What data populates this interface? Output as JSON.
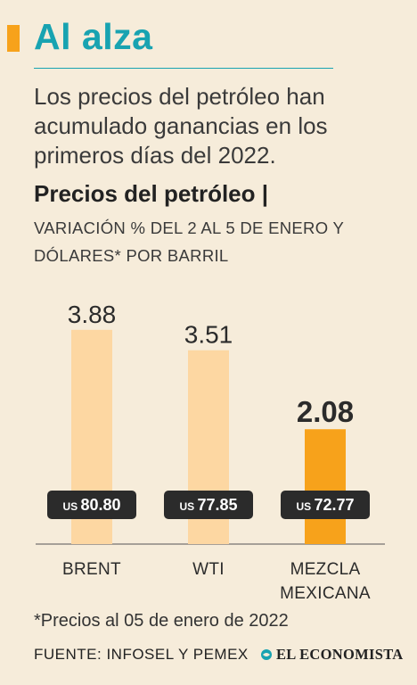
{
  "header": {
    "title": "Al alza",
    "subtitle": "Los precios del petróleo han acumulado ganancias en los primeros días del 2022."
  },
  "chart_data": {
    "type": "bar",
    "title": "Precios del petróleo |",
    "subtitle": "VARIACIÓN % DEL 2 AL 5 DE ENERO Y DÓLARES* POR BARRIL",
    "categories": [
      "BRENT",
      "WTI",
      "MEZCLA MEXICANA"
    ],
    "values": [
      3.88,
      3.51,
      2.08
    ],
    "value_labels": [
      "3.88",
      "3.51",
      "2.08"
    ],
    "price_currency": "US",
    "prices": [
      "80.80",
      "77.85",
      "72.77"
    ],
    "ylim": [
      0,
      4.2
    ],
    "grid": false,
    "colors": {
      "default_bar": "#fdd7a2",
      "highlight_bar": "#f7a21b",
      "price_badge": "#2b2b2b",
      "baseline": "#555555"
    },
    "highlight_index": 2
  },
  "footer": {
    "footnote": "*Precios al 05 de enero de 2022",
    "source": "FUENTE: INFOSEL Y PEMEX",
    "brand": "EL ECONOMISTA",
    "brand_icon": "globe-icon"
  }
}
